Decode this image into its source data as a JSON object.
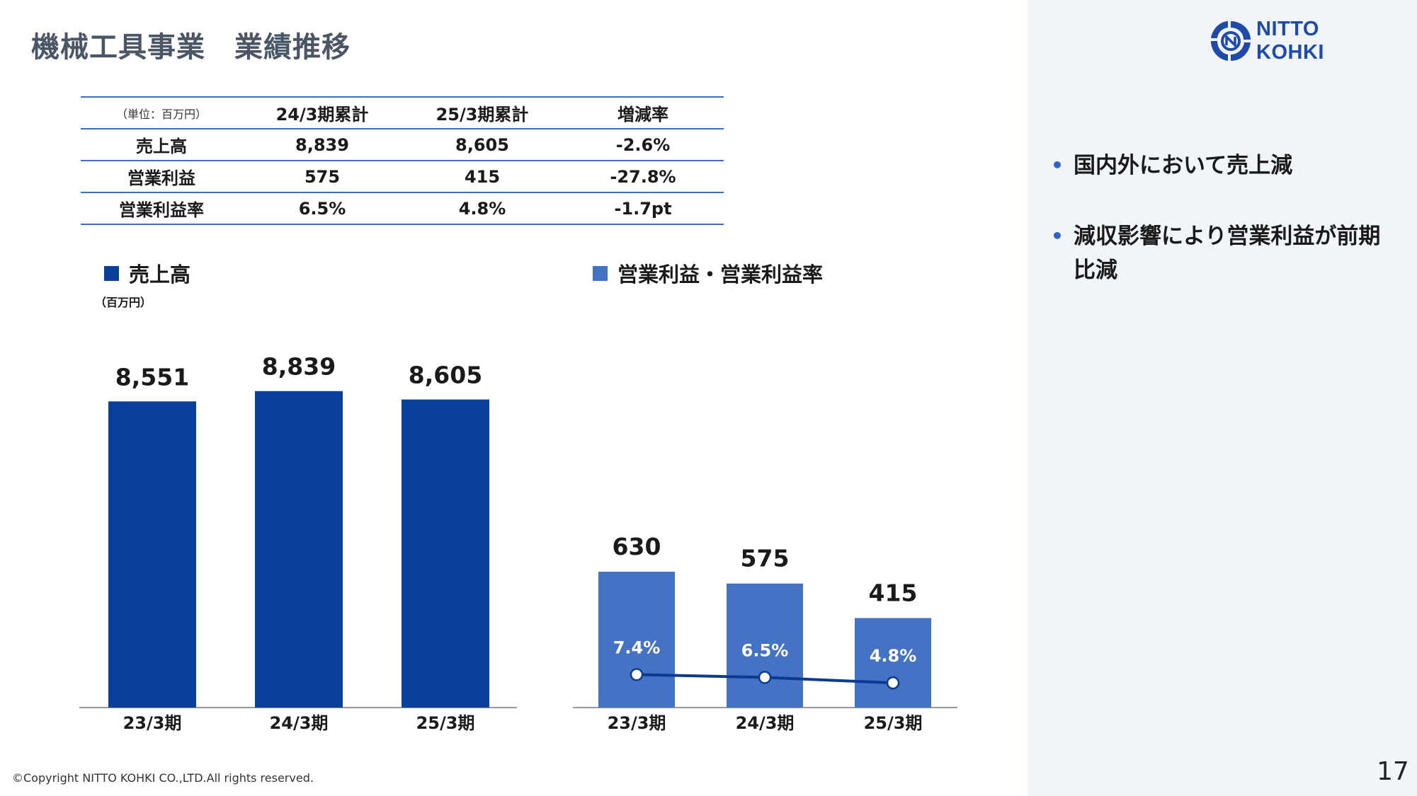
{
  "slide": {
    "title": "機械工具事業　業績推移",
    "page_number": "17",
    "copyright": "©Copyright NITTO KOHKI CO.,LTD.All rights reserved."
  },
  "logo": {
    "text": "NITTO KOHKI",
    "icon": "nitto-kohki-logo-icon",
    "color": "#1f4aa8"
  },
  "table": {
    "unit": "（単位：百万円）",
    "headers": [
      "24/3期累計",
      "25/3期累計",
      "増減率"
    ],
    "rows": [
      {
        "label": "売上高",
        "v1": "8,839",
        "v2": "8,605",
        "change": "-2.6%"
      },
      {
        "label": "営業利益",
        "v1": "575",
        "v2": "415",
        "change": "-27.8%"
      },
      {
        "label": "営業利益率",
        "v1": "6.5%",
        "v2": "4.8%",
        "change": "-1.7pt"
      }
    ]
  },
  "legends": {
    "sales": "売上高",
    "profit": "営業利益・営業利益率",
    "sales_unit": "（百万円）"
  },
  "bullets": [
    "国内外において売上減",
    "減収影響により営業利益が前期比減"
  ],
  "colors": {
    "sales_bar": "#0a3f9e",
    "profit_bar": "#4472c4",
    "rate_line": "#0b3a91",
    "table_rule": "#3d6fbf",
    "bullet": "#2e62c3"
  },
  "chart_data": [
    {
      "type": "bar",
      "title": "売上高",
      "unit": "（百万円）",
      "categories": [
        "23/3期",
        "24/3期",
        "25/3期"
      ],
      "values": [
        8551,
        8839,
        8605
      ],
      "labels": [
        "8,551",
        "8,839",
        "8,605"
      ],
      "ylim": [
        0,
        9000
      ]
    },
    {
      "type": "bar",
      "title": "営業利益・営業利益率",
      "categories": [
        "23/3期",
        "24/3期",
        "25/3期"
      ],
      "series": [
        {
          "values": [
            630,
            575,
            415
          ],
          "labels": [
            "630",
            "575",
            "415"
          ]
        },
        {
          "values": [
            7.4,
            6.5,
            4.8
          ],
          "labels": [
            "7.4%",
            "6.5%",
            "4.8%"
          ],
          "kind": "line"
        }
      ]
    }
  ]
}
